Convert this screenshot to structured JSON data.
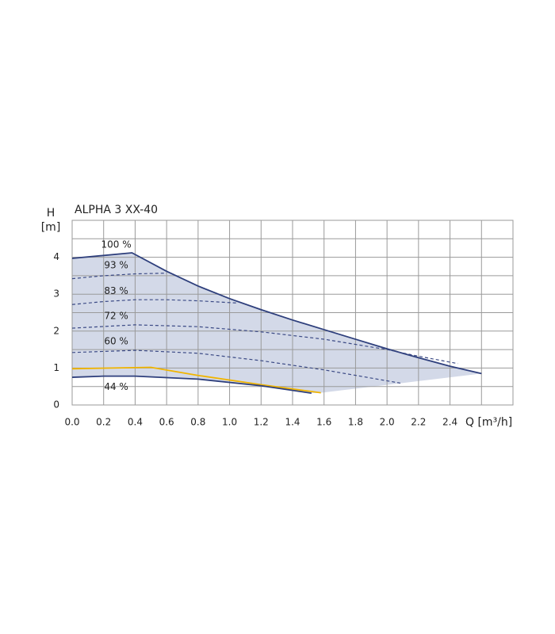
{
  "chart_data": {
    "type": "line",
    "title": "ALPHA 3 XX-40",
    "x_label": "Q [m³/h]",
    "y_label": "H",
    "y_unit": "[m]",
    "xlim": [
      0,
      2.8
    ],
    "ylim": [
      0,
      5
    ],
    "xticks": [
      {
        "value": 0,
        "label": "0.0"
      },
      0.2,
      0.4,
      0.6,
      0.8,
      {
        "value": 1,
        "label": "1.0"
      },
      1.2,
      1.4,
      1.6,
      1.8,
      {
        "value": 2,
        "label": "2.0"
      },
      2.2,
      2.4
    ],
    "xminor": [
      2.6
    ],
    "yticks": [
      0,
      1,
      2,
      3,
      4
    ],
    "yminor": [
      0.5,
      1.5,
      2.5,
      3.5,
      4.5
    ],
    "grid": true,
    "area_color": "#d3d9e8",
    "series": [
      {
        "name": "100 %",
        "color": "#2e3f7c",
        "dashed": false,
        "x": [
          0,
          0.38,
          0.6,
          0.8,
          1.0,
          1.2,
          1.4,
          1.6,
          1.8,
          2.0,
          2.2,
          2.4,
          2.6
        ],
        "values": [
          3.97,
          4.12,
          3.62,
          3.22,
          2.88,
          2.58,
          2.3,
          2.04,
          1.78,
          1.52,
          1.28,
          1.05,
          0.85
        ]
      },
      {
        "name": "93 %",
        "color": "#3b4a85",
        "dashed": true,
        "x": [
          0,
          0.2,
          0.4,
          0.6
        ],
        "values": [
          3.42,
          3.5,
          3.55,
          3.57
        ]
      },
      {
        "name": "83 %",
        "color": "#3b4a85",
        "dashed": true,
        "x": [
          0,
          0.2,
          0.4,
          0.6,
          0.8,
          1.05
        ],
        "values": [
          2.72,
          2.8,
          2.85,
          2.85,
          2.82,
          2.76
        ]
      },
      {
        "name": "72 %",
        "color": "#3b4a85",
        "dashed": true,
        "x": [
          0,
          0.4,
          0.8,
          1.2,
          1.6,
          2.0,
          2.2,
          2.45
        ],
        "values": [
          2.08,
          2.17,
          2.12,
          1.98,
          1.78,
          1.5,
          1.32,
          1.12
        ]
      },
      {
        "name": "60 %",
        "color": "#3b4a85",
        "dashed": true,
        "x": [
          0,
          0.4,
          0.8,
          1.2,
          1.6,
          2.1
        ],
        "values": [
          1.42,
          1.48,
          1.4,
          1.2,
          0.95,
          0.58
        ]
      },
      {
        "color": "#f0b400",
        "dashed": false,
        "x": [
          0,
          0.5,
          0.8,
          1.2,
          1.58
        ],
        "values": [
          0.98,
          1.02,
          0.8,
          0.55,
          0.33
        ]
      },
      {
        "name": "44 %",
        "color": "#2e3f7c",
        "dashed": false,
        "x": [
          0,
          0.2,
          0.4,
          0.8,
          1.2,
          1.52
        ],
        "values": [
          0.75,
          0.78,
          0.78,
          0.7,
          0.52,
          0.32
        ]
      }
    ]
  }
}
